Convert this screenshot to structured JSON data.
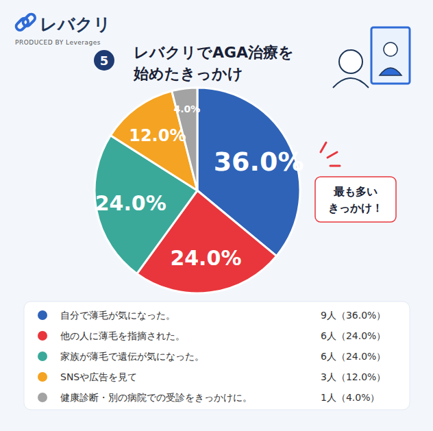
{
  "chart_data": {
    "type": "pie",
    "logo": "レバクリ",
    "logo_subtitle": "PRODUCED BY Leverages",
    "chart_number": 5,
    "title": "レバクリでAGA治療を\n始めたきっかけ",
    "annotation": "最も多い\nきっかけ！",
    "categories": [
      "自分で薄毛が気になった。",
      "他の人に薄毛を指摘された。",
      "家族が薄毛で遺伝が気になった。",
      "SNSや広告を見て",
      "健康診断・別の病院での受診をきっかけに。"
    ],
    "values": [
      36,
      24,
      24,
      12,
      4
    ],
    "value_labels": [
      "36.0%",
      "24.0%",
      "24.0%",
      "12.0%",
      "4.0%"
    ],
    "count_labels": [
      "9人（36.0%）",
      "6人（24.0%）",
      "6人（24.0%）",
      "3人（12.0%）",
      "1人（4.0%）"
    ],
    "colors": [
      "#2f63b8",
      "#e8363c",
      "#3aa99a",
      "#f4a322",
      "#a3a3a3"
    ],
    "data_labels": true,
    "legend": "bottom"
  }
}
